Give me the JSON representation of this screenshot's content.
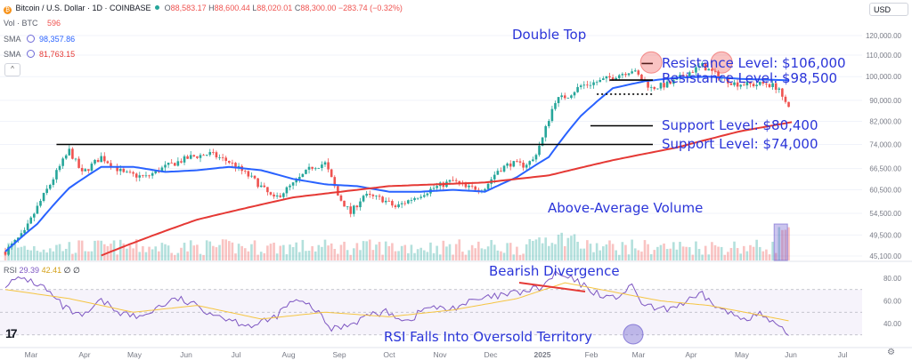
{
  "header": {
    "symbol_title": "Bitcoin / U.S. Dollar · 1D · COINBASE",
    "ohlc": {
      "o_label": "O",
      "o_value": "88,583.17",
      "h_label": "H",
      "h_value": "88,600.44",
      "l_label": "L",
      "l_value": "88,020.01",
      "c_label": "C",
      "c_value": "88,300.00",
      "change": "−283.74 (−0.32%)"
    },
    "volume_label": "Vol · BTC",
    "volume_value": "596",
    "sma1_label": "SMA",
    "sma1_value": "98,357.86",
    "sma2_label": "SMA",
    "sma2_value": "81,763.15",
    "collapse_symbol": "^"
  },
  "currency_selector": "USD",
  "rsi_legend": {
    "label": "RSI",
    "value1": "29.39",
    "value2": "42.41",
    "value3": "∅",
    "value4": "∅"
  },
  "colors": {
    "up": "#26a69a",
    "down": "#ef5350",
    "sma_fast": "#2962ff",
    "sma_slow": "#e53935",
    "annotation": "#2b35d9",
    "rsi": "#7e57c2",
    "rsi_ma": "#f5c542"
  },
  "chart_data": [
    {
      "type": "candlestick",
      "title": "Bitcoin / U.S. Dollar · 1D · COINBASE",
      "x_tick_labels": [
        "Mar",
        "Apr",
        "May",
        "Jun",
        "Jul",
        "Aug",
        "Sep",
        "Oct",
        "Nov",
        "Dec",
        "2025",
        "Feb",
        "Mar",
        "Apr",
        "May",
        "Jun",
        "Jul"
      ],
      "y_tick_labels": [
        "120,000.00",
        "110,000.00",
        "100,000.00",
        "90,000.00",
        "82,000.00",
        "74,000.00",
        "66,500.00",
        "60,500.00",
        "54,500.00",
        "49,500.00",
        "45,100.00"
      ],
      "scale": "log",
      "ylim": [
        45100,
        125000
      ],
      "series": [
        {
          "name": "Bitcoin / U.S. Dollar",
          "type": "candlestick",
          "control_points": [
            {
              "t": 0,
              "v": 46000
            },
            {
              "t": 6,
              "v": 50000
            },
            {
              "t": 14,
              "v": 62000
            },
            {
              "t": 20,
              "v": 72000
            },
            {
              "t": 24,
              "v": 65000
            },
            {
              "t": 30,
              "v": 70000
            },
            {
              "t": 37,
              "v": 65000
            },
            {
              "t": 44,
              "v": 64000
            },
            {
              "t": 50,
              "v": 67000
            },
            {
              "t": 58,
              "v": 70000
            },
            {
              "t": 64,
              "v": 71000
            },
            {
              "t": 70,
              "v": 68500
            },
            {
              "t": 78,
              "v": 63000
            },
            {
              "t": 84,
              "v": 58000
            },
            {
              "t": 90,
              "v": 62000
            },
            {
              "t": 96,
              "v": 67000
            },
            {
              "t": 100,
              "v": 68000
            },
            {
              "t": 104,
              "v": 59000
            },
            {
              "t": 108,
              "v": 54500
            },
            {
              "t": 112,
              "v": 59000
            },
            {
              "t": 118,
              "v": 58000
            },
            {
              "t": 122,
              "v": 56000
            },
            {
              "t": 128,
              "v": 58500
            },
            {
              "t": 134,
              "v": 61000
            },
            {
              "t": 140,
              "v": 63000
            },
            {
              "t": 144,
              "v": 61000
            },
            {
              "t": 150,
              "v": 61000
            },
            {
              "t": 154,
              "v": 66000
            },
            {
              "t": 158,
              "v": 68000
            },
            {
              "t": 162,
              "v": 67500
            },
            {
              "t": 165,
              "v": 69000
            },
            {
              "t": 168,
              "v": 76000
            },
            {
              "t": 172,
              "v": 90000
            },
            {
              "t": 176,
              "v": 92000
            },
            {
              "t": 180,
              "v": 96000
            },
            {
              "t": 186,
              "v": 98000
            },
            {
              "t": 192,
              "v": 101000
            },
            {
              "t": 196,
              "v": 103000
            },
            {
              "t": 202,
              "v": 95000
            },
            {
              "t": 208,
              "v": 97000
            },
            {
              "t": 214,
              "v": 102000
            },
            {
              "t": 218,
              "v": 105000
            },
            {
              "t": 222,
              "v": 101000
            },
            {
              "t": 228,
              "v": 97000
            },
            {
              "t": 234,
              "v": 96500
            },
            {
              "t": 238,
              "v": 97000
            },
            {
              "t": 242,
              "v": 95000
            },
            {
              "t": 245,
              "v": 88000
            }
          ]
        },
        {
          "name": "SMA 50",
          "control_points": [
            {
              "t": 0,
              "v": 46000
            },
            {
              "t": 10,
              "v": 52000
            },
            {
              "t": 20,
              "v": 61000
            },
            {
              "t": 30,
              "v": 67000
            },
            {
              "t": 40,
              "v": 67000
            },
            {
              "t": 50,
              "v": 65500
            },
            {
              "t": 60,
              "v": 66000
            },
            {
              "t": 70,
              "v": 67000
            },
            {
              "t": 80,
              "v": 66000
            },
            {
              "t": 90,
              "v": 63500
            },
            {
              "t": 100,
              "v": 62000
            },
            {
              "t": 110,
              "v": 61500
            },
            {
              "t": 120,
              "v": 60000
            },
            {
              "t": 130,
              "v": 60000
            },
            {
              "t": 140,
              "v": 60500
            },
            {
              "t": 150,
              "v": 60000
            },
            {
              "t": 160,
              "v": 64000
            },
            {
              "t": 170,
              "v": 70000
            },
            {
              "t": 180,
              "v": 84000
            },
            {
              "t": 190,
              "v": 95000
            },
            {
              "t": 200,
              "v": 98000
            },
            {
              "t": 210,
              "v": 99500
            },
            {
              "t": 220,
              "v": 100000
            },
            {
              "t": 230,
              "v": 99000
            },
            {
              "t": 245,
              "v": 98400
            }
          ]
        },
        {
          "name": "SMA 200",
          "control_points": [
            {
              "t": 30,
              "v": 45200
            },
            {
              "t": 60,
              "v": 53000
            },
            {
              "t": 90,
              "v": 58500
            },
            {
              "t": 120,
              "v": 61500
            },
            {
              "t": 150,
              "v": 62500
            },
            {
              "t": 170,
              "v": 64500
            },
            {
              "t": 190,
              "v": 69000
            },
            {
              "t": 210,
              "v": 73000
            },
            {
              "t": 230,
              "v": 78500
            },
            {
              "t": 246,
              "v": 81700
            }
          ]
        }
      ],
      "horizontal_levels": [
        {
          "label": "Resistance Level: $106,000",
          "value": 106000,
          "style": "solid"
        },
        {
          "label": "Resistance Level: $98,500",
          "value": 98500,
          "style": "solid"
        },
        {
          "label": "",
          "value": 92500,
          "style": "dotted"
        },
        {
          "label": "Support Level: $80,400",
          "value": 80400,
          "style": "solid"
        },
        {
          "label": "Support Level: $74,000",
          "value": 74000,
          "style": "solid"
        }
      ],
      "annotations": [
        "Double Top",
        "Above-Average Volume"
      ]
    },
    {
      "type": "bar",
      "title": "Vol · BTC",
      "series": [
        {
          "name": "Vol · BTC"
        }
      ]
    },
    {
      "type": "line",
      "title": "RSI",
      "y_tick_labels": [
        "80.00",
        "60.00",
        "40.00"
      ],
      "ylim": [
        25,
        90
      ],
      "bands": [
        30,
        70
      ],
      "series": [
        {
          "name": "RSI",
          "control_points": [
            {
              "t": 0,
              "v": 75
            },
            {
              "t": 6,
              "v": 80
            },
            {
              "t": 12,
              "v": 72
            },
            {
              "t": 18,
              "v": 55
            },
            {
              "t": 24,
              "v": 45
            },
            {
              "t": 30,
              "v": 60
            },
            {
              "t": 36,
              "v": 50
            },
            {
              "t": 42,
              "v": 45
            },
            {
              "t": 48,
              "v": 55
            },
            {
              "t": 54,
              "v": 62
            },
            {
              "t": 60,
              "v": 55
            },
            {
              "t": 66,
              "v": 48
            },
            {
              "t": 72,
              "v": 42
            },
            {
              "t": 78,
              "v": 38
            },
            {
              "t": 84,
              "v": 45
            },
            {
              "t": 90,
              "v": 60
            },
            {
              "t": 96,
              "v": 55
            },
            {
              "t": 102,
              "v": 35
            },
            {
              "t": 108,
              "v": 40
            },
            {
              "t": 114,
              "v": 48
            },
            {
              "t": 120,
              "v": 50
            },
            {
              "t": 126,
              "v": 42
            },
            {
              "t": 132,
              "v": 55
            },
            {
              "t": 138,
              "v": 52
            },
            {
              "t": 144,
              "v": 58
            },
            {
              "t": 150,
              "v": 62
            },
            {
              "t": 156,
              "v": 65
            },
            {
              "t": 162,
              "v": 68
            },
            {
              "t": 168,
              "v": 72
            },
            {
              "t": 172,
              "v": 84
            },
            {
              "t": 178,
              "v": 78
            },
            {
              "t": 184,
              "v": 68
            },
            {
              "t": 190,
              "v": 62
            },
            {
              "t": 196,
              "v": 72
            },
            {
              "t": 200,
              "v": 55
            },
            {
              "t": 206,
              "v": 52
            },
            {
              "t": 212,
              "v": 58
            },
            {
              "t": 218,
              "v": 65
            },
            {
              "t": 224,
              "v": 52
            },
            {
              "t": 230,
              "v": 45
            },
            {
              "t": 236,
              "v": 48
            },
            {
              "t": 240,
              "v": 40
            },
            {
              "t": 245,
              "v": 29.4
            }
          ]
        },
        {
          "name": "RSI MA",
          "control_points": [
            {
              "t": 0,
              "v": 70
            },
            {
              "t": 20,
              "v": 62
            },
            {
              "t": 40,
              "v": 50
            },
            {
              "t": 60,
              "v": 56
            },
            {
              "t": 80,
              "v": 44
            },
            {
              "t": 100,
              "v": 50
            },
            {
              "t": 120,
              "v": 46
            },
            {
              "t": 140,
              "v": 52
            },
            {
              "t": 160,
              "v": 62
            },
            {
              "t": 175,
              "v": 76
            },
            {
              "t": 190,
              "v": 68
            },
            {
              "t": 205,
              "v": 60
            },
            {
              "t": 220,
              "v": 56
            },
            {
              "t": 235,
              "v": 48
            },
            {
              "t": 245,
              "v": 42.4
            }
          ]
        }
      ],
      "annotations": [
        "Bearish Divergence",
        "RSI Falls Into Oversold Territory"
      ]
    }
  ],
  "annotation_labels": {
    "double_top": "Double Top",
    "res_106": "Resistance Level: $106,000",
    "res_98": "Resistance Level: $98,500",
    "sup_80": "Support Level: $80,400",
    "sup_74": "Support Level: $74,000",
    "volume": "Above-Average Volume",
    "divergence": "Bearish Divergence",
    "oversold": "RSI Falls Into Oversold Territory"
  }
}
